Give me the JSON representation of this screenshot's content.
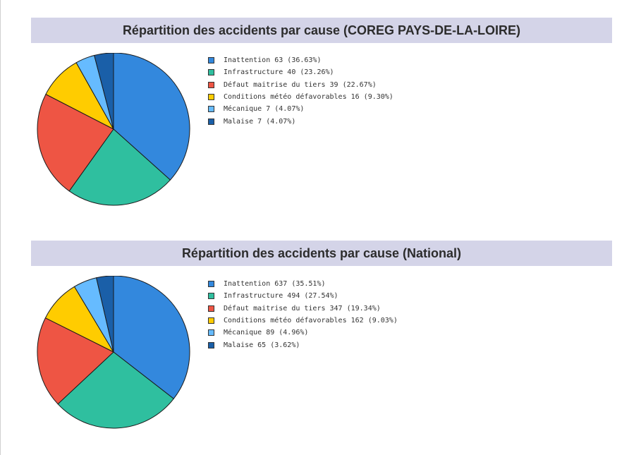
{
  "chart_data": [
    {
      "type": "pie",
      "title": "Répartition des accidents par cause (COREG PAYS-DE-LA-LOIRE)",
      "slices": [
        {
          "label": "Inattention",
          "value": 63,
          "percent": "36.63%",
          "legend": "Inattention 63 (36.63%)",
          "color": "#3388dd"
        },
        {
          "label": "Infrastructure",
          "value": 40,
          "percent": "23.26%",
          "legend": "Infrastructure 40 (23.26%)",
          "color": "#2fbf9f"
        },
        {
          "label": "Défaut maitrise du tiers",
          "value": 39,
          "percent": "22.67%",
          "legend": "Défaut maitrise du tiers 39 (22.67%)",
          "color": "#ee5544"
        },
        {
          "label": "Conditions météo défavorables",
          "value": 16,
          "percent": "9.30%",
          "legend": "Conditions météo défavorables 16 (9.30%)",
          "color": "#ffcc00"
        },
        {
          "label": "Mécanique",
          "value": 7,
          "percent": "4.07%",
          "legend": "Mécanique 7 (4.07%)",
          "color": "#66bbff"
        },
        {
          "label": "Malaise",
          "value": 7,
          "percent": "4.07%",
          "legend": "Malaise 7 (4.07%)",
          "color": "#1a5fa8"
        }
      ],
      "legend_position": "right"
    },
    {
      "type": "pie",
      "title": "Répartition des accidents par cause (National)",
      "slices": [
        {
          "label": "Inattention",
          "value": 637,
          "percent": "35.51%",
          "legend": "Inattention 637 (35.51%)",
          "color": "#3388dd"
        },
        {
          "label": "Infrastructure",
          "value": 494,
          "percent": "27.54%",
          "legend": "Infrastructure 494 (27.54%)",
          "color": "#2fbf9f"
        },
        {
          "label": "Défaut maitrise du tiers",
          "value": 347,
          "percent": "19.34%",
          "legend": "Défaut maitrise du tiers 347 (19.34%)",
          "color": "#ee5544"
        },
        {
          "label": "Conditions météo défavorables",
          "value": 162,
          "percent": "9.03%",
          "legend": "Conditions météo défavorables 162 (9.03%)",
          "color": "#ffcc00"
        },
        {
          "label": "Mécanique",
          "value": 89,
          "percent": "4.96%",
          "legend": "Mécanique 89 (4.96%)",
          "color": "#66bbff"
        },
        {
          "label": "Malaise",
          "value": 65,
          "percent": "3.62%",
          "legend": "Malaise 65 (3.62%)",
          "color": "#1a5fa8"
        }
      ],
      "legend_position": "right"
    }
  ]
}
